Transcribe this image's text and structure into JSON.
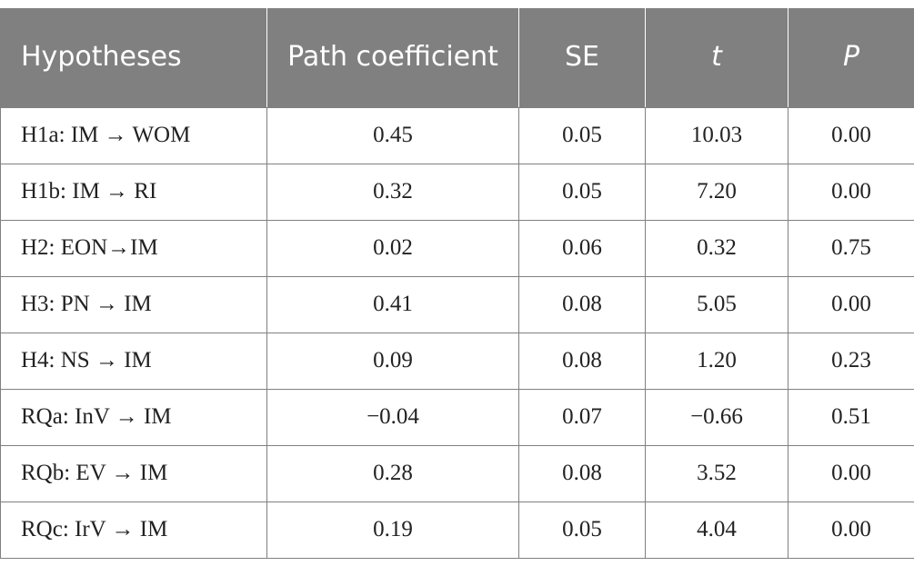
{
  "table": {
    "headers": [
      "Hypotheses",
      "Path coefficient",
      "SE",
      "t",
      "P"
    ],
    "rows": [
      [
        "H1a: IM → WOM",
        "0.45",
        "0.05",
        "10.03",
        "0.00"
      ],
      [
        "H1b: IM → RI",
        "0.32",
        "0.05",
        "7.20",
        "0.00"
      ],
      [
        "H2: EON→IM",
        "0.02",
        "0.06",
        "0.32",
        "0.75"
      ],
      [
        "H3: PN → IM",
        "0.41",
        "0.08",
        "5.05",
        "0.00"
      ],
      [
        "H4: NS → IM",
        "0.09",
        "0.08",
        "1.20",
        "0.23"
      ],
      [
        "RQa: InV → IM",
        "−0.04",
        "0.07",
        "−0.66",
        "0.51"
      ],
      [
        "RQb: EV → IM",
        "0.28",
        "0.08",
        "3.52",
        "0.00"
      ],
      [
        "RQc: IrV → IM",
        "0.19",
        "0.05",
        "4.04",
        "0.00"
      ]
    ]
  },
  "colors": {
    "header_background": "#808080",
    "header_text": "#ffffff",
    "border": "#808080",
    "body_text": "#222222"
  }
}
